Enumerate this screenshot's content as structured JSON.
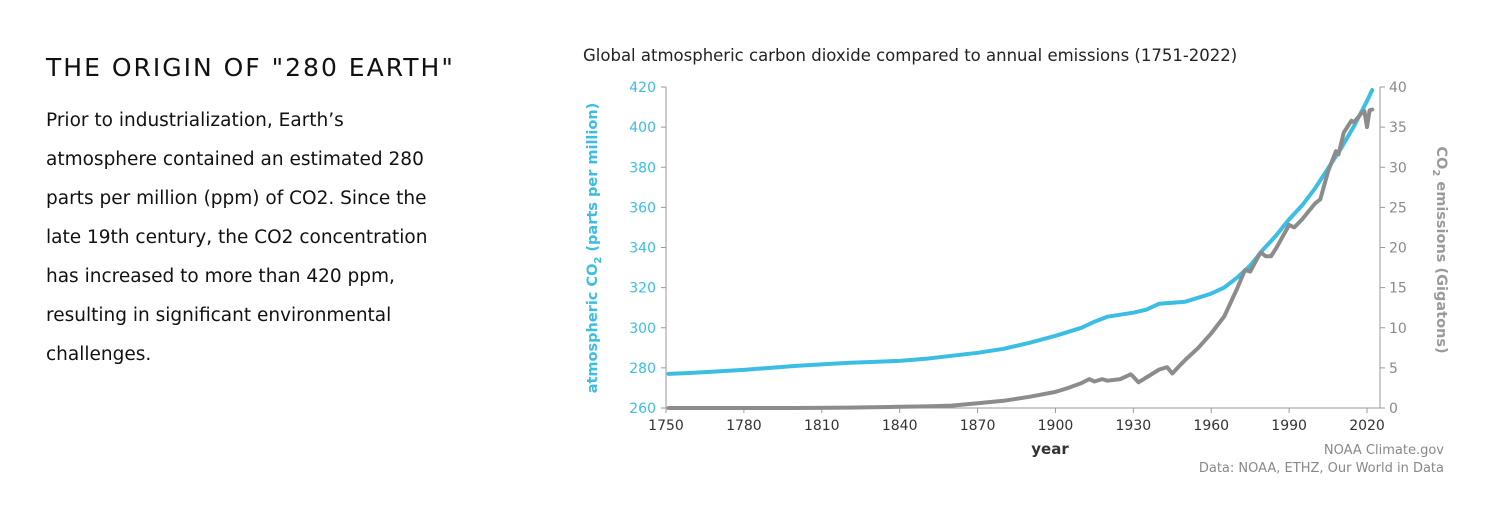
{
  "heading": "THE ORIGIN OF \"280 EARTH\"",
  "paragraph": "Prior to industrialization, Earth’s atmosphere contained an estimated 280 parts per million (ppm) of CO2. Since the late 19th century, the CO2 concentration has increased to more than 420 ppm, resulting in significant environmental challenges.",
  "colors": {
    "co2": "#3bbde4",
    "emissions": "#8c8c8c",
    "axis": "#9a9a9a",
    "text": "#111111"
  },
  "chart_data": {
    "type": "line",
    "title": "Global atmospheric carbon dioxide compared to annual emissions (1751-2022)",
    "xlabel": "year",
    "ylabel": "atmospheric CO",
    "ylabel_sub": "2",
    "ylabel_tail": " (parts per million)",
    "y2label": "CO",
    "y2label_sub": "2",
    "y2label_tail": " emissions (Gigatons)",
    "xlim": [
      1750,
      2025
    ],
    "ylim": [
      260,
      420
    ],
    "y2lim": [
      0,
      40
    ],
    "xticks": [
      1750,
      1780,
      1810,
      1840,
      1870,
      1900,
      1930,
      1960,
      1990,
      2020
    ],
    "yticks": [
      260,
      280,
      300,
      320,
      340,
      360,
      380,
      400,
      420
    ],
    "y2ticks": [
      0,
      5,
      10,
      15,
      20,
      25,
      30,
      35,
      40
    ],
    "credit": "NOAA Climate.gov",
    "source": "Data: NOAA, ETHZ, Our World in Data",
    "series": [
      {
        "name": "atmospheric CO2",
        "axis": "left",
        "x": [
          1751,
          1760,
          1780,
          1800,
          1820,
          1840,
          1850,
          1860,
          1870,
          1880,
          1890,
          1900,
          1910,
          1915,
          1920,
          1925,
          1930,
          1935,
          1940,
          1945,
          1950,
          1955,
          1960,
          1965,
          1970,
          1975,
          1980,
          1985,
          1990,
          1995,
          2000,
          2005,
          2010,
          2015,
          2020,
          2022
        ],
        "values": [
          277,
          277.5,
          279,
          281,
          282.5,
          283.5,
          284.5,
          286,
          287.5,
          289.5,
          292.5,
          296,
          300,
          303,
          305.5,
          306.5,
          307.5,
          309,
          312,
          312.5,
          313,
          315,
          317,
          320,
          325,
          331,
          339,
          346,
          354,
          361,
          369.5,
          379.5,
          389.5,
          400.5,
          413,
          418.5
        ]
      },
      {
        "name": "CO2 emissions",
        "axis": "right",
        "x": [
          1751,
          1800,
          1820,
          1840,
          1850,
          1860,
          1870,
          1880,
          1890,
          1900,
          1905,
          1910,
          1913,
          1915,
          1918,
          1920,
          1925,
          1929,
          1930,
          1932,
          1935,
          1940,
          1943,
          1945,
          1947,
          1950,
          1955,
          1960,
          1965,
          1970,
          1973,
          1975,
          1979,
          1981,
          1983,
          1985,
          1990,
          1992,
          1995,
          2000,
          2002,
          2005,
          2008,
          2009,
          2011,
          2014,
          2015,
          2018,
          2019,
          2020,
          2021,
          2022
        ],
        "values": [
          0.0,
          0.0,
          0.05,
          0.15,
          0.2,
          0.3,
          0.6,
          0.9,
          1.4,
          2.0,
          2.5,
          3.1,
          3.6,
          3.3,
          3.6,
          3.4,
          3.6,
          4.2,
          3.9,
          3.2,
          3.8,
          4.8,
          5.1,
          4.3,
          5.0,
          6.0,
          7.5,
          9.3,
          11.4,
          14.9,
          17.2,
          17.0,
          19.4,
          18.9,
          18.9,
          19.9,
          22.8,
          22.5,
          23.5,
          25.5,
          26.0,
          29.5,
          32.0,
          31.6,
          34.3,
          35.8,
          35.6,
          36.8,
          37.0,
          35.0,
          37.1,
          37.2
        ]
      }
    ]
  }
}
